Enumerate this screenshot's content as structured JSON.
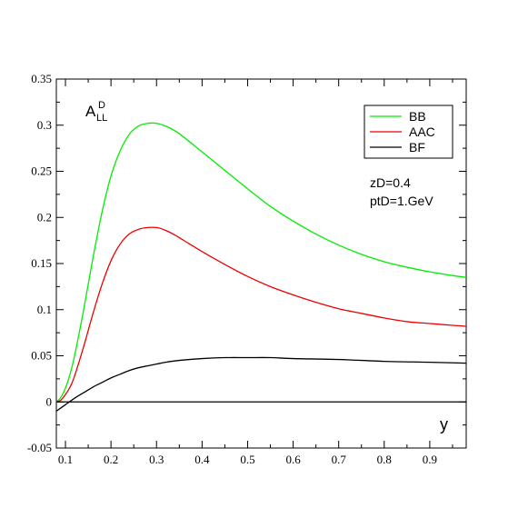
{
  "chart_data": {
    "type": "line",
    "title": "",
    "xlabel": "y",
    "ylabel_main": "A",
    "ylabel_sup": "D",
    "ylabel_sub": "LL",
    "xlim": [
      0.08,
      0.98
    ],
    "ylim": [
      -0.05,
      0.35
    ],
    "x_ticks": [
      0.1,
      0.2,
      0.3,
      0.4,
      0.5,
      0.6,
      0.7,
      0.8,
      0.9
    ],
    "x_tick_labels": [
      "0.1",
      "0.2",
      "0.3",
      "0.4",
      "0.5",
      "0.6",
      "0.7",
      "0.8",
      "0.9"
    ],
    "y_ticks": [
      -0.05,
      0,
      0.05,
      0.1,
      0.15,
      0.2,
      0.25,
      0.3,
      0.35
    ],
    "y_tick_labels": [
      "-0.05",
      "0",
      "0.05",
      "0.1",
      "0.15",
      "0.2",
      "0.25",
      "0.3",
      "0.35"
    ],
    "grid": false,
    "legend_position": "top-right",
    "annotations": [
      "zD=0.4",
      "ptD=1.GeV"
    ],
    "series": [
      {
        "name": "BB",
        "color": "#00ee00",
        "x": [
          0.08,
          0.09,
          0.1,
          0.11,
          0.12,
          0.14,
          0.16,
          0.18,
          0.2,
          0.22,
          0.24,
          0.26,
          0.28,
          0.3,
          0.32,
          0.34,
          0.36,
          0.4,
          0.45,
          0.5,
          0.55,
          0.6,
          0.65,
          0.7,
          0.75,
          0.8,
          0.85,
          0.9,
          0.95,
          0.98
        ],
        "y": [
          0.0,
          0.005,
          0.015,
          0.03,
          0.05,
          0.1,
          0.155,
          0.205,
          0.245,
          0.272,
          0.29,
          0.299,
          0.302,
          0.302,
          0.299,
          0.294,
          0.287,
          0.271,
          0.251,
          0.231,
          0.212,
          0.196,
          0.182,
          0.17,
          0.16,
          0.152,
          0.146,
          0.141,
          0.137,
          0.135
        ]
      },
      {
        "name": "AAC",
        "color": "#ee0000",
        "x": [
          0.08,
          0.09,
          0.1,
          0.11,
          0.12,
          0.14,
          0.16,
          0.18,
          0.2,
          0.22,
          0.24,
          0.26,
          0.28,
          0.3,
          0.32,
          0.34,
          0.36,
          0.4,
          0.45,
          0.5,
          0.55,
          0.6,
          0.65,
          0.7,
          0.75,
          0.8,
          0.85,
          0.9,
          0.95,
          0.98
        ],
        "y": [
          0.0,
          0.002,
          0.008,
          0.016,
          0.028,
          0.06,
          0.095,
          0.127,
          0.153,
          0.171,
          0.182,
          0.187,
          0.189,
          0.189,
          0.186,
          0.181,
          0.175,
          0.163,
          0.149,
          0.136,
          0.125,
          0.116,
          0.108,
          0.101,
          0.096,
          0.091,
          0.087,
          0.085,
          0.083,
          0.082
        ]
      },
      {
        "name": "BF",
        "color": "#000000",
        "x": [
          0.08,
          0.1,
          0.12,
          0.14,
          0.16,
          0.18,
          0.2,
          0.22,
          0.24,
          0.26,
          0.28,
          0.3,
          0.32,
          0.35,
          0.4,
          0.45,
          0.5,
          0.55,
          0.6,
          0.7,
          0.8,
          0.9,
          0.98
        ],
        "y": [
          -0.01,
          -0.003,
          0.004,
          0.01,
          0.016,
          0.021,
          0.026,
          0.03,
          0.034,
          0.037,
          0.039,
          0.041,
          0.043,
          0.045,
          0.047,
          0.048,
          0.048,
          0.048,
          0.047,
          0.046,
          0.044,
          0.043,
          0.042
        ]
      },
      {
        "name": "",
        "color": "#000000",
        "x": [
          0.08,
          0.98
        ],
        "y": [
          0,
          0
        ]
      }
    ]
  }
}
